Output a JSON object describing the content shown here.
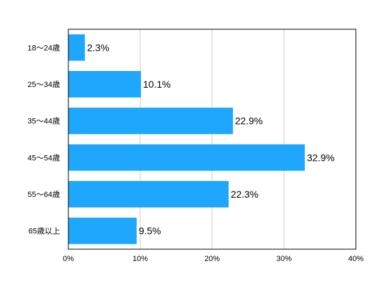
{
  "chart_data": {
    "type": "bar",
    "orientation": "horizontal",
    "categories": [
      "18〜24歳",
      "25〜34歳",
      "35〜44歳",
      "45〜54歳",
      "55〜64歳",
      "65歳以上"
    ],
    "values": [
      2.3,
      10.1,
      22.9,
      32.9,
      22.3,
      9.5
    ],
    "value_labels": [
      "2.3%",
      "10.1%",
      "22.9%",
      "32.9%",
      "22.3%",
      "9.5%"
    ],
    "xlim": [
      0,
      40
    ],
    "x_ticks": [
      0,
      10,
      20,
      30,
      40
    ],
    "x_tick_labels": [
      "0%",
      "10%",
      "20%",
      "30%",
      "40%"
    ],
    "grid": "vertical",
    "legend": "none",
    "bar_color": "#1ea7fd",
    "title": "",
    "xlabel": "",
    "ylabel": ""
  }
}
